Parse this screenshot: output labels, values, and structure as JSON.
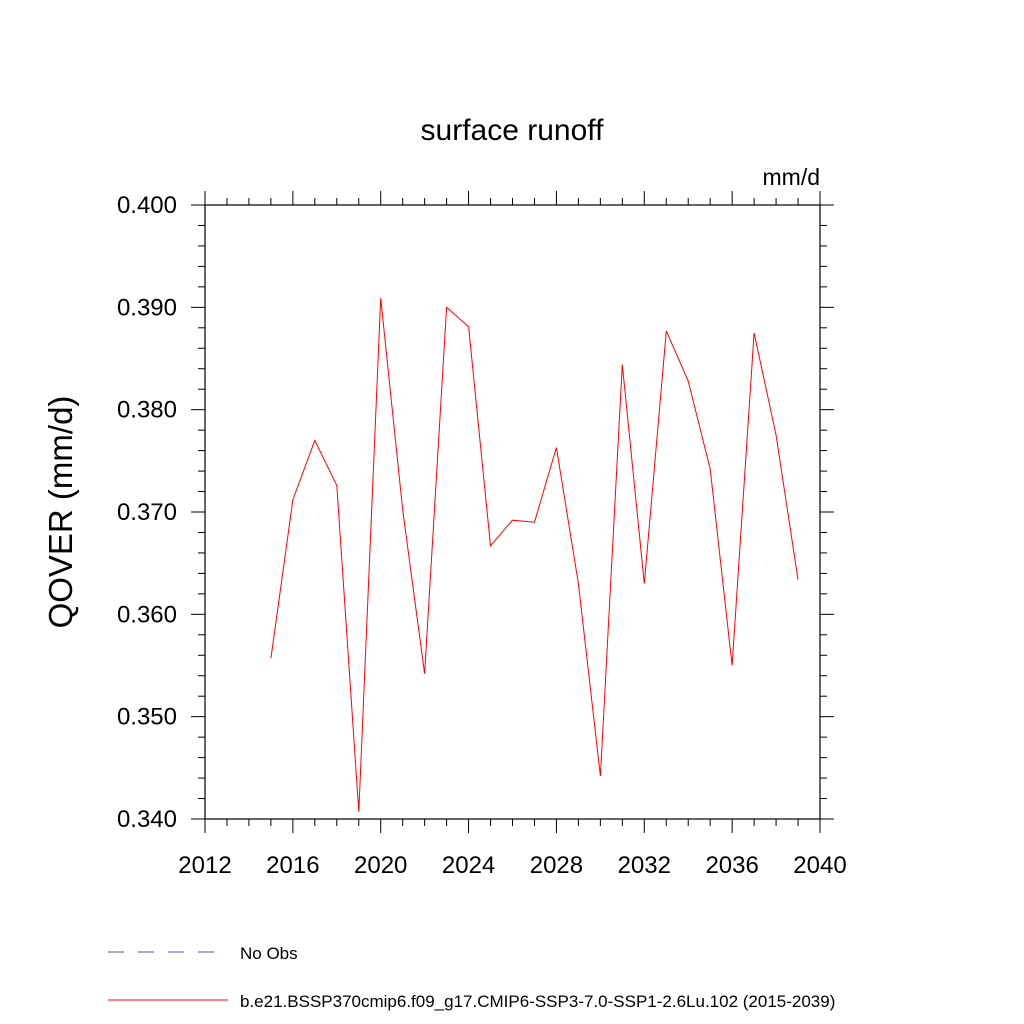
{
  "chart_data": {
    "type": "line",
    "title": "surface runoff",
    "units_label": "mm/d",
    "ylabel": "QOVER  (mm/d)",
    "xlabel": "",
    "xlim": [
      2012,
      2040
    ],
    "ylim": [
      0.34,
      0.4
    ],
    "xticks": [
      2012,
      2016,
      2020,
      2024,
      2028,
      2032,
      2036,
      2040
    ],
    "xtick_labels": [
      "2012",
      "2016",
      "2020",
      "2024",
      "2028",
      "2032",
      "2036",
      "2040"
    ],
    "yticks": [
      0.34,
      0.35,
      0.36,
      0.37,
      0.38,
      0.39,
      0.4
    ],
    "ytick_labels": [
      "0.340",
      "0.350",
      "0.360",
      "0.370",
      "0.380",
      "0.390",
      "0.400"
    ],
    "grid": false,
    "legend_placement": "bottom",
    "series": [
      {
        "name": "b.e21.BSSP370cmip6.f09_g17.CMIP6-SSP3-7.0-SSP1-2.6Lu.102 (2015-2039)",
        "color": "#ff0000",
        "dash": "solid",
        "x": [
          2015,
          2016,
          2017,
          2018,
          2019,
          2020,
          2021,
          2022,
          2023,
          2024,
          2025,
          2026,
          2027,
          2028,
          2029,
          2030,
          2031,
          2032,
          2033,
          2034,
          2035,
          2036,
          2037,
          2038,
          2039
        ],
        "values": [
          0.3557,
          0.3712,
          0.377,
          0.3726,
          0.3407,
          0.3909,
          0.3702,
          0.3542,
          0.39,
          0.3881,
          0.3667,
          0.3692,
          0.369,
          0.3763,
          0.363,
          0.3442,
          0.3844,
          0.363,
          0.3877,
          0.3828,
          0.3742,
          0.355,
          0.3875,
          0.3775,
          0.3634
        ]
      }
    ],
    "legend": [
      {
        "label": "No Obs",
        "color": "#5a4fb0",
        "dash": "dashed"
      },
      {
        "label": "b.e21.BSSP370cmip6.f09_g17.CMIP6-SSP3-7.0-SSP1-2.6Lu.102 (2015-2039)",
        "color": "#ff0000",
        "dash": "solid"
      }
    ]
  }
}
